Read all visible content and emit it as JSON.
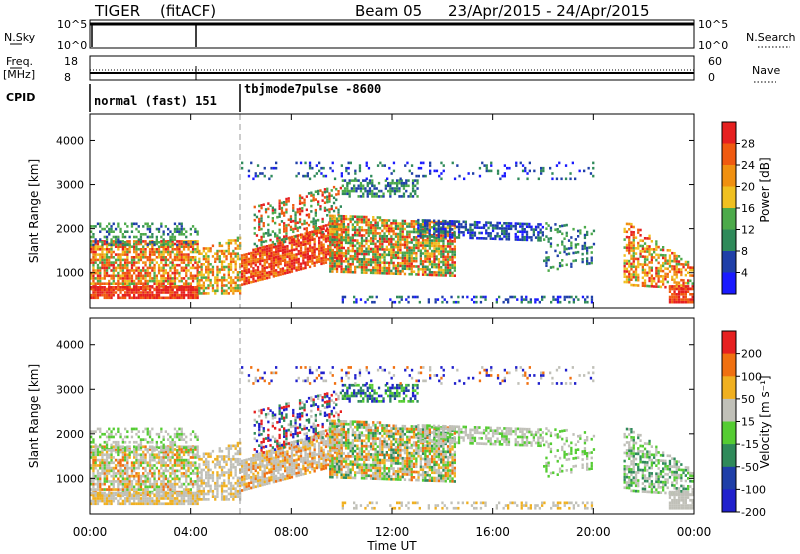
{
  "header": {
    "radar": "TIGER",
    "mode": "(fitACF)",
    "beam": "Beam 05",
    "date_range": "23/Apr/2015 - 24/Apr/2015"
  },
  "strip_labels": {
    "nsky": "N.Sky",
    "nsky_ticks": [
      "10^5",
      "10^0"
    ],
    "nsearch": "N.Search",
    "nsearch_ticks": [
      "10^5",
      "10^0"
    ],
    "freq_line1": "Freq.",
    "freq_line2": "[MHz]",
    "freq_ticks": [
      "18",
      "8"
    ],
    "nave": "Nave",
    "nave_ticks": [
      "60",
      "0"
    ],
    "cpid": "CPID",
    "cpid_segments": [
      {
        "label": "normal (fast) 151",
        "start_hour": 0
      },
      {
        "label": "tbjmode7pulse -8600",
        "start_hour": 6
      }
    ]
  },
  "colors": {
    "power": [
      "#1a1aff",
      "#1f3fa8",
      "#2f8a5a",
      "#4caa4a",
      "#f0c020",
      "#f09010",
      "#f05a10",
      "#e62020"
    ],
    "velocity": [
      "#2020cc",
      "#1f3fa8",
      "#2f8a5a",
      "#55cc33",
      "#c0c0b8",
      "#f0b020",
      "#f07010",
      "#e62020"
    ]
  },
  "chart_data": [
    {
      "type": "heatmap",
      "panel": "power",
      "ylabel": "Slant Range [km]",
      "y_ticks": [
        1000,
        2000,
        3000,
        4000
      ],
      "ylim": [
        200,
        4600
      ],
      "colorbar_label": "Power [dB]",
      "colorbar_ticks": [
        "28",
        "24",
        "20",
        "16",
        "12",
        "8",
        "4"
      ]
    },
    {
      "type": "heatmap",
      "panel": "velocity",
      "ylabel": "Slant Range [km]",
      "y_ticks": [
        1000,
        2000,
        3000,
        4000
      ],
      "ylim": [
        200,
        4600
      ],
      "colorbar_label": "Velocity [m s⁻¹]",
      "colorbar_ticks": [
        "200",
        "100",
        "50",
        "15",
        "-15",
        "-50",
        "-100",
        "-200"
      ]
    }
  ],
  "x_axis": {
    "label": "Time UT",
    "ticks": [
      "00:00",
      "04:00",
      "08:00",
      "12:00",
      "16:00",
      "20:00",
      "00:00"
    ],
    "xlim_hours": [
      0,
      24
    ]
  }
}
